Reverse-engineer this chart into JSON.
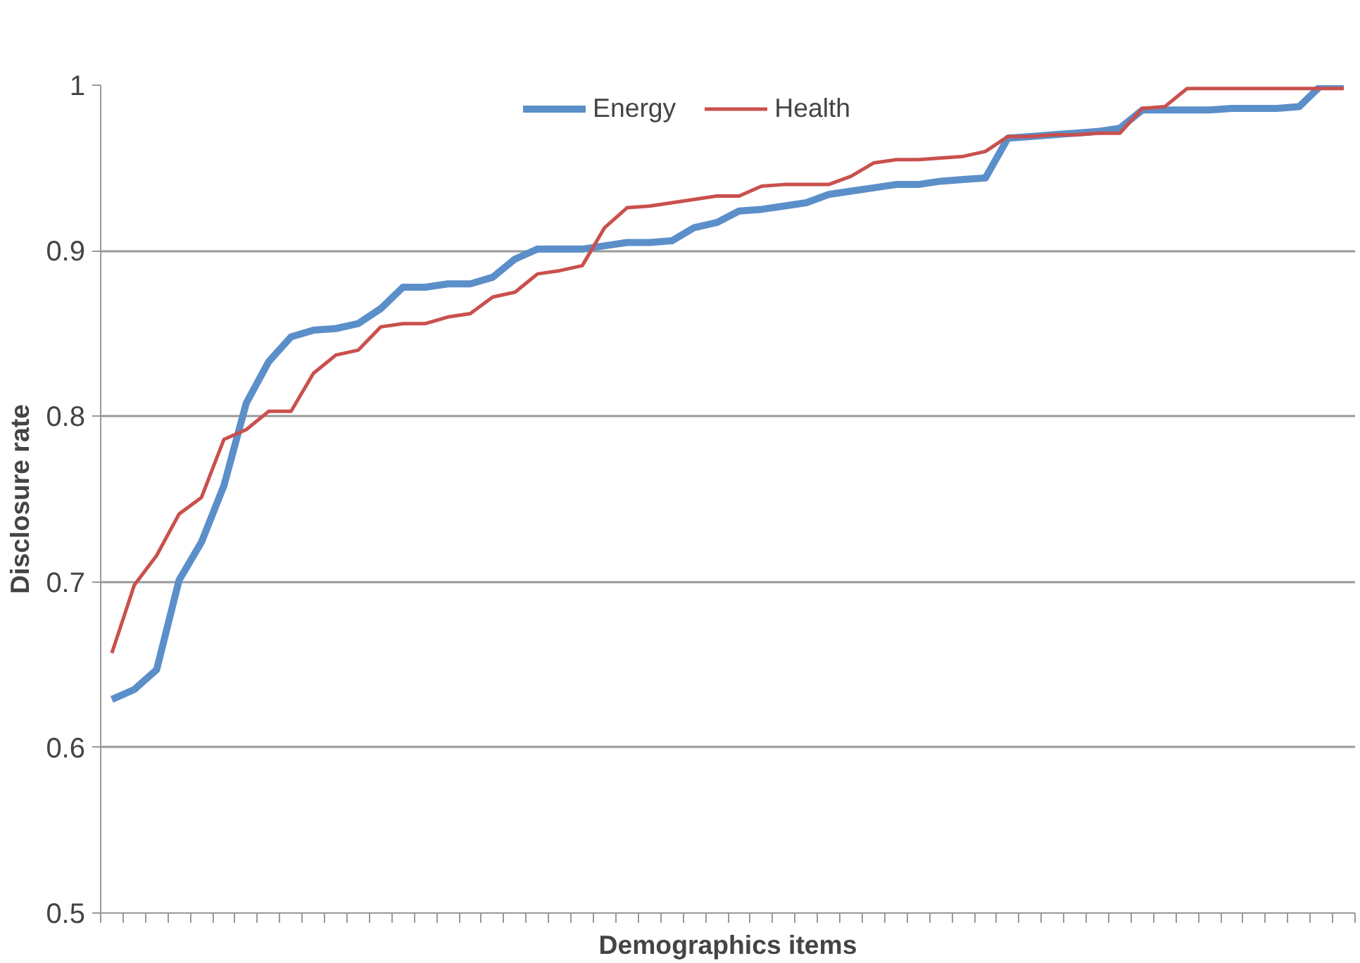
{
  "chart_data": {
    "type": "line",
    "xlabel": "Demographics items",
    "ylabel": "Disclosure rate",
    "categories": [
      null,
      null,
      null,
      null,
      null,
      null,
      null,
      null,
      null,
      null,
      null,
      null,
      null,
      null,
      null,
      null,
      null,
      null,
      null,
      null,
      null,
      null,
      null,
      null,
      null,
      null,
      null,
      null,
      null,
      null,
      null,
      null,
      null,
      null,
      null,
      null,
      null,
      null,
      null,
      null,
      null,
      null,
      null,
      null,
      null,
      null,
      null,
      null,
      null,
      null,
      null,
      null,
      null,
      null,
      null,
      null
    ],
    "series": [
      {
        "name": "Energy",
        "color": "#5b8fc9",
        "values": [
          0.629,
          0.635,
          0.647,
          0.701,
          0.724,
          0.758,
          0.808,
          0.833,
          0.848,
          0.852,
          0.853,
          0.856,
          0.865,
          0.878,
          0.878,
          0.88,
          0.88,
          0.884,
          0.895,
          0.901,
          0.901,
          0.901,
          0.903,
          0.905,
          0.905,
          0.906,
          0.914,
          0.917,
          0.924,
          0.925,
          0.927,
          0.929,
          0.934,
          0.936,
          0.938,
          0.94,
          0.94,
          0.942,
          0.943,
          0.944,
          0.968,
          0.969,
          0.97,
          0.971,
          0.972,
          0.974,
          0.985,
          0.985,
          0.985,
          0.985,
          0.986,
          0.986,
          0.986,
          0.987,
          1.0,
          1.0
        ]
      },
      {
        "name": "Health",
        "color": "#c9504d",
        "values": [
          0.657,
          0.698,
          0.716,
          0.741,
          0.751,
          0.786,
          0.792,
          0.803,
          0.803,
          0.826,
          0.837,
          0.84,
          0.854,
          0.856,
          0.856,
          0.86,
          0.862,
          0.872,
          0.875,
          0.886,
          0.888,
          0.891,
          0.914,
          0.926,
          0.927,
          0.929,
          0.931,
          0.933,
          0.933,
          0.939,
          0.94,
          0.94,
          0.94,
          0.945,
          0.953,
          0.955,
          0.955,
          0.956,
          0.957,
          0.96,
          0.969,
          0.969,
          0.97,
          0.97,
          0.971,
          0.971,
          0.986,
          0.987,
          0.998,
          0.998,
          0.998,
          0.998,
          0.998,
          0.998,
          0.998,
          0.998
        ]
      }
    ],
    "ylim": [
      0.5,
      1
    ],
    "yticks": [
      0.5,
      0.6,
      0.7,
      0.8,
      0.9,
      1
    ],
    "grid": "y",
    "legend": "top",
    "marker": "none",
    "line_style": "solid"
  }
}
